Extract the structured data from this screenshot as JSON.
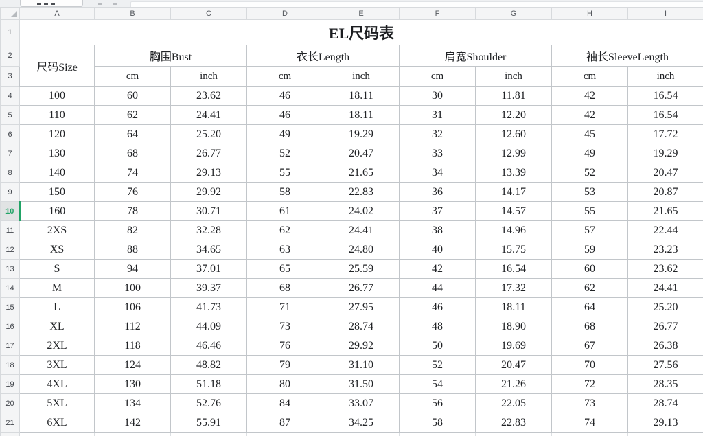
{
  "title": "EL尺码表",
  "columns": [
    "A",
    "B",
    "C",
    "D",
    "E",
    "F",
    "G",
    "H",
    "I"
  ],
  "fixed_row_numbers": {
    "r1": "1",
    "r2": "2",
    "r3": "3"
  },
  "selected_row": 10,
  "header": {
    "size_label": "尺码Size",
    "groups": [
      {
        "label": "胸围Bust"
      },
      {
        "label": "衣长Length"
      },
      {
        "label": "肩宽Shoulder"
      },
      {
        "label": "袖长SleeveLength"
      }
    ],
    "units": [
      "cm",
      "inch",
      "cm",
      "inch",
      "cm",
      "inch",
      "cm",
      "inch"
    ]
  },
  "rows": [
    {
      "n": 4,
      "size": "100",
      "cells": [
        "60",
        "23.62",
        "46",
        "18.11",
        "30",
        "11.81",
        "42",
        "16.54"
      ]
    },
    {
      "n": 5,
      "size": "110",
      "cells": [
        "62",
        "24.41",
        "46",
        "18.11",
        "31",
        "12.20",
        "42",
        "16.54"
      ]
    },
    {
      "n": 6,
      "size": "120",
      "cells": [
        "64",
        "25.20",
        "49",
        "19.29",
        "32",
        "12.60",
        "45",
        "17.72"
      ]
    },
    {
      "n": 7,
      "size": "130",
      "cells": [
        "68",
        "26.77",
        "52",
        "20.47",
        "33",
        "12.99",
        "49",
        "19.29"
      ]
    },
    {
      "n": 8,
      "size": "140",
      "cells": [
        "74",
        "29.13",
        "55",
        "21.65",
        "34",
        "13.39",
        "52",
        "20.47"
      ]
    },
    {
      "n": 9,
      "size": "150",
      "cells": [
        "76",
        "29.92",
        "58",
        "22.83",
        "36",
        "14.17",
        "53",
        "20.87"
      ]
    },
    {
      "n": 10,
      "size": "160",
      "cells": [
        "78",
        "30.71",
        "61",
        "24.02",
        "37",
        "14.57",
        "55",
        "21.65"
      ]
    },
    {
      "n": 11,
      "size": "2XS",
      "cells": [
        "82",
        "32.28",
        "62",
        "24.41",
        "38",
        "14.96",
        "57",
        "22.44"
      ]
    },
    {
      "n": 12,
      "size": "XS",
      "cells": [
        "88",
        "34.65",
        "63",
        "24.80",
        "40",
        "15.75",
        "59",
        "23.23"
      ]
    },
    {
      "n": 13,
      "size": "S",
      "cells": [
        "94",
        "37.01",
        "65",
        "25.59",
        "42",
        "16.54",
        "60",
        "23.62"
      ]
    },
    {
      "n": 14,
      "size": "M",
      "cells": [
        "100",
        "39.37",
        "68",
        "26.77",
        "44",
        "17.32",
        "62",
        "24.41"
      ]
    },
    {
      "n": 15,
      "size": "L",
      "cells": [
        "106",
        "41.73",
        "71",
        "27.95",
        "46",
        "18.11",
        "64",
        "25.20"
      ]
    },
    {
      "n": 16,
      "size": "XL",
      "cells": [
        "112",
        "44.09",
        "73",
        "28.74",
        "48",
        "18.90",
        "68",
        "26.77"
      ]
    },
    {
      "n": 17,
      "size": "2XL",
      "cells": [
        "118",
        "46.46",
        "76",
        "29.92",
        "50",
        "19.69",
        "67",
        "26.38"
      ]
    },
    {
      "n": 18,
      "size": "3XL",
      "cells": [
        "124",
        "48.82",
        "79",
        "31.10",
        "52",
        "20.47",
        "70",
        "27.56"
      ]
    },
    {
      "n": 19,
      "size": "4XL",
      "cells": [
        "130",
        "51.18",
        "80",
        "31.50",
        "54",
        "21.26",
        "72",
        "28.35"
      ]
    },
    {
      "n": 20,
      "size": "5XL",
      "cells": [
        "134",
        "52.76",
        "84",
        "33.07",
        "56",
        "22.05",
        "73",
        "28.74"
      ]
    },
    {
      "n": 21,
      "size": "6XL",
      "cells": [
        "142",
        "55.91",
        "87",
        "34.25",
        "58",
        "22.83",
        "74",
        "29.13"
      ]
    }
  ],
  "colors": {
    "accent_green": "#21a366",
    "header_bg": "#f4f5f6",
    "cell_border": "#c2c6ca"
  }
}
